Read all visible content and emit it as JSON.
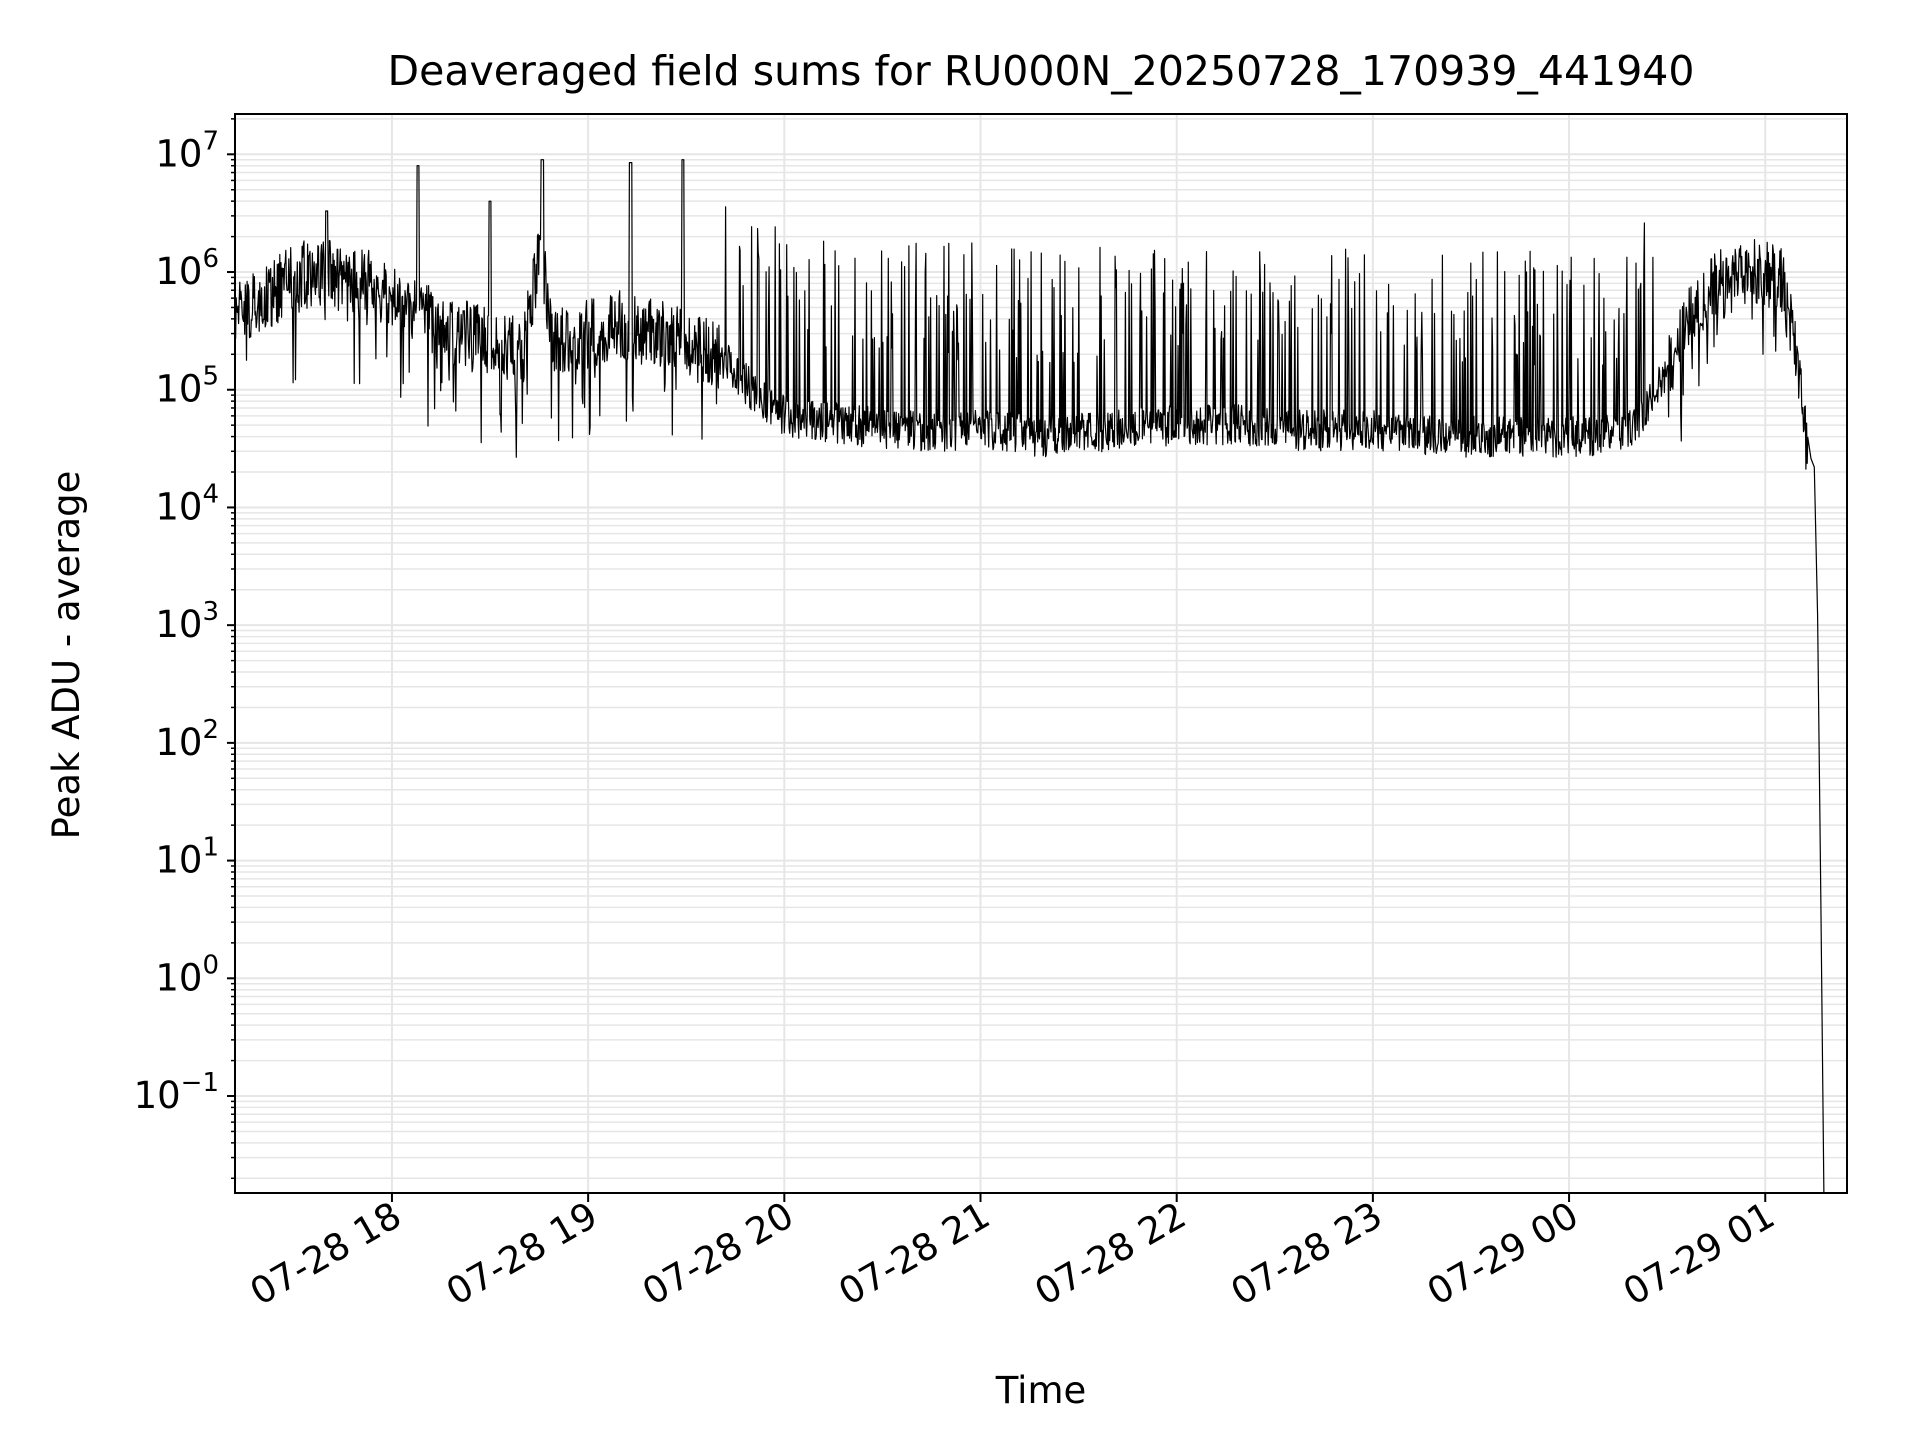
{
  "chart_data": {
    "type": "line",
    "title": "Deaveraged field sums for RU000N_20250728_170939_441940",
    "xlabel": "Time",
    "ylabel": "Peak ADU - average",
    "yscale": "log",
    "ylim": [
      0.015,
      22000000
    ],
    "xlim": [
      "2025-07-28 17:12",
      "2025-07-29 01:25"
    ],
    "grid": true,
    "grid_color": "#e6e6e6",
    "line_color": "#000000",
    "x_ticks": [
      {
        "value": "2025-07-28 18:00",
        "label": "07-28 18"
      },
      {
        "value": "2025-07-28 19:00",
        "label": "07-28 19"
      },
      {
        "value": "2025-07-28 20:00",
        "label": "07-28 20"
      },
      {
        "value": "2025-07-28 21:00",
        "label": "07-28 21"
      },
      {
        "value": "2025-07-28 22:00",
        "label": "07-28 22"
      },
      {
        "value": "2025-07-28 23:00",
        "label": "07-28 23"
      },
      {
        "value": "2025-07-29 00:00",
        "label": "07-29 00"
      },
      {
        "value": "2025-07-29 01:00",
        "label": "07-29 01"
      }
    ],
    "y_ticks": [
      {
        "value": 0.1,
        "base": "10",
        "exp": "−1"
      },
      {
        "value": 1,
        "base": "10",
        "exp": "0"
      },
      {
        "value": 10,
        "base": "10",
        "exp": "1"
      },
      {
        "value": 100,
        "base": "10",
        "exp": "2"
      },
      {
        "value": 1000,
        "base": "10",
        "exp": "3"
      },
      {
        "value": 10000,
        "base": "10",
        "exp": "4"
      },
      {
        "value": 100000,
        "base": "10",
        "exp": "5"
      },
      {
        "value": 1000000,
        "base": "10",
        "exp": "6"
      },
      {
        "value": 10000000,
        "base": "10",
        "exp": "7"
      }
    ],
    "series": [
      {
        "x": [
          "2025-07-28 17:12",
          "2025-07-28 17:20",
          "2025-07-28 17:28",
          "2025-07-28 17:36",
          "2025-07-28 17:44",
          "2025-07-28 17:52",
          "2025-07-28 18:00",
          "2025-07-28 18:10",
          "2025-07-28 18:20",
          "2025-07-28 18:30",
          "2025-07-28 18:40",
          "2025-07-28 18:45",
          "2025-07-28 18:50",
          "2025-07-28 19:00",
          "2025-07-28 19:10",
          "2025-07-28 19:20",
          "2025-07-28 19:30",
          "2025-07-28 19:40",
          "2025-07-28 19:50",
          "2025-07-28 20:00",
          "2025-07-28 20:20",
          "2025-07-28 20:40",
          "2025-07-28 21:00",
          "2025-07-28 21:20",
          "2025-07-28 21:40",
          "2025-07-28 22:00",
          "2025-07-28 22:20",
          "2025-07-28 22:40",
          "2025-07-28 23:00",
          "2025-07-28 23:20",
          "2025-07-28 23:40",
          "2025-07-29 00:00",
          "2025-07-29 00:10",
          "2025-07-29 00:20",
          "2025-07-29 00:30",
          "2025-07-29 00:40",
          "2025-07-29 00:50",
          "2025-07-29 01:00",
          "2025-07-29 01:05",
          "2025-07-29 01:10",
          "2025-07-29 01:13",
          "2025-07-29 01:15",
          "2025-07-29 01:16",
          "2025-07-29 01:17",
          "2025-07-29 01:18"
        ],
        "y": [
          500000,
          550000,
          800000,
          1000000,
          900000,
          800000,
          700000,
          400000,
          300000,
          250000,
          200000,
          1500000,
          250000,
          300000,
          350000,
          300000,
          250000,
          200000,
          100000,
          60000,
          50000,
          45000,
          45000,
          40000,
          45000,
          50000,
          50000,
          45000,
          45000,
          40000,
          40000,
          40000,
          40000,
          50000,
          150000,
          600000,
          900000,
          1000000,
          900000,
          150000,
          25000,
          22000,
          20000,
          1000,
          0.01
        ]
      }
    ]
  }
}
